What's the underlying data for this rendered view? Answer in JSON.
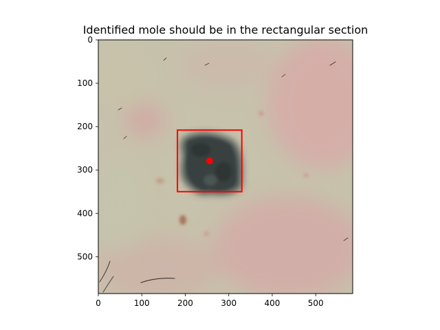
{
  "figure": {
    "title": "Identified mole should be in the rectangular section"
  },
  "image": {
    "extent": {
      "width": 585,
      "height": 585
    },
    "subject": "close-up photo of skin with a dark pigmented mole",
    "colors": {
      "skin_base": "#c7c2ac",
      "skin_pink": "#d9a7a7",
      "mole": "#3f4a49",
      "hair": "#3b3330",
      "spot": "#a46a4f"
    }
  },
  "annotation": {
    "rectangle": {
      "x0": 182,
      "y0": 208,
      "x1": 330,
      "y1": 350,
      "color": "#ff0000"
    },
    "center_marker": {
      "x": 256,
      "y": 279,
      "color": "#ff0000"
    }
  },
  "axes": {
    "x": {
      "range": [
        0,
        585
      ],
      "ticks": [
        0,
        100,
        200,
        300,
        400,
        500
      ]
    },
    "y": {
      "range": [
        0,
        585
      ],
      "inverted": true,
      "ticks": [
        0,
        100,
        200,
        300,
        400,
        500
      ]
    }
  }
}
